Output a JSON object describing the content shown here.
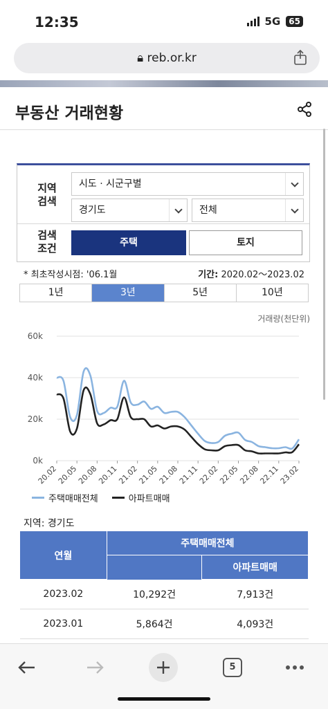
{
  "status_bar": {
    "time": "12:35",
    "network": "5G",
    "battery": "65"
  },
  "browser": {
    "url": "reb.or.kr",
    "tab_count": "5"
  },
  "page": {
    "title": "부동산 거래현황"
  },
  "search": {
    "region_label": "지역\n검색",
    "region_select": "시도 · 시군구별",
    "province_select": "경기도",
    "district_select": "전체",
    "condition_label": "검색\n조건",
    "housing_button": "주택",
    "land_button": "토지"
  },
  "info": {
    "first_written": "* 최초작성시점: '06.1월",
    "period_label": "기간:",
    "period_value": "2020.02～2023.02"
  },
  "period_tabs": [
    {
      "label": "1년",
      "active": false
    },
    {
      "label": "3년",
      "active": true
    },
    {
      "label": "5년",
      "active": false
    },
    {
      "label": "10년",
      "active": false
    }
  ],
  "chart_unit": "거래량(천단위)",
  "chart_data": {
    "type": "line",
    "title": "",
    "ylabel": "거래량(천단위)",
    "ylim": [
      0,
      60000
    ],
    "yticks": [
      "60k",
      "40k",
      "20k",
      "0k"
    ],
    "xticks": [
      "20.02",
      "20.05",
      "20.08",
      "20.11",
      "21.02",
      "21.05",
      "21.08",
      "21.11",
      "22.02",
      "22.05",
      "22.08",
      "22.11",
      "23.02"
    ],
    "x": [
      "20.02",
      "20.03",
      "20.04",
      "20.05",
      "20.06",
      "20.07",
      "20.08",
      "20.09",
      "20.10",
      "20.11",
      "20.12",
      "21.01",
      "21.02",
      "21.03",
      "21.04",
      "21.05",
      "21.06",
      "21.07",
      "21.08",
      "21.09",
      "21.10",
      "21.11",
      "21.12",
      "22.01",
      "22.02",
      "22.03",
      "22.04",
      "22.05",
      "22.06",
      "22.07",
      "22.08",
      "22.09",
      "22.10",
      "22.11",
      "22.12",
      "23.01",
      "23.02"
    ],
    "series": [
      {
        "name": "주택매매전체",
        "color": "#8ab4e0",
        "values": [
          40000,
          38500,
          21000,
          22000,
          43000,
          41000,
          24000,
          23000,
          25500,
          26000,
          38500,
          28000,
          27000,
          28500,
          25000,
          26000,
          23000,
          23500,
          23500,
          21000,
          17000,
          13000,
          9500,
          8500,
          9000,
          12000,
          13000,
          13500,
          10000,
          9000,
          7000,
          6500,
          6000,
          6000,
          6500,
          5864,
          10292
        ]
      },
      {
        "name": "아파트매매",
        "color": "#222222",
        "values": [
          32000,
          30000,
          14000,
          15500,
          34000,
          32000,
          18000,
          17500,
          19500,
          20000,
          30500,
          21000,
          20000,
          20000,
          16500,
          17000,
          15500,
          16500,
          16500,
          15000,
          11500,
          8000,
          5500,
          5000,
          5000,
          7000,
          7500,
          7500,
          5000,
          4500,
          3500,
          3500,
          3500,
          3500,
          4000,
          4093,
          7913
        ]
      }
    ],
    "legend": "bottom-left",
    "grid": "horizontal"
  },
  "region_text": "지역: 경기도",
  "table": {
    "header_month": "연월",
    "header_group": "주택매매전체",
    "header_apt": "아파트매매",
    "rows": [
      {
        "month": "2023.02",
        "total": "10,292건",
        "apt": "7,913건"
      },
      {
        "month": "2023.01",
        "total": "5,864건",
        "apt": "4,093건"
      }
    ]
  }
}
